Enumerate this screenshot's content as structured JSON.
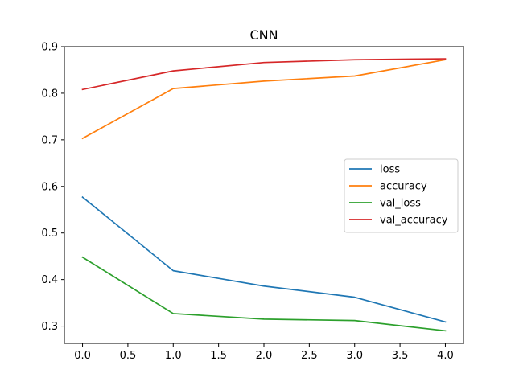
{
  "chart_data": {
    "type": "line",
    "title": "CNN",
    "xlabel": "",
    "ylabel": "",
    "x": [
      0,
      1,
      2,
      3,
      4
    ],
    "xlim": [
      -0.2,
      4.2
    ],
    "ylim": [
      0.263,
      0.9
    ],
    "xticks": [
      0,
      0.5,
      1,
      1.5,
      2,
      2.5,
      3,
      3.5,
      4
    ],
    "xtick_labels": [
      "0.0",
      "0.5",
      "1.0",
      "1.5",
      "2.0",
      "2.5",
      "3.0",
      "3.5",
      "4.0"
    ],
    "yticks": [
      0.3,
      0.4,
      0.5,
      0.6,
      0.7,
      0.8,
      0.9
    ],
    "ytick_labels": [
      "0.3",
      "0.4",
      "0.5",
      "0.6",
      "0.7",
      "0.8",
      "0.9"
    ],
    "grid": false,
    "legend_position": "center-right",
    "series": [
      {
        "name": "loss",
        "color": "#1f77b4",
        "values": [
          0.577,
          0.419,
          0.386,
          0.362,
          0.309
        ]
      },
      {
        "name": "accuracy",
        "color": "#ff7f0e",
        "values": [
          0.703,
          0.81,
          0.826,
          0.837,
          0.872
        ]
      },
      {
        "name": "val_loss",
        "color": "#2ca02c",
        "values": [
          0.448,
          0.327,
          0.315,
          0.312,
          0.29
        ]
      },
      {
        "name": "val_accuracy",
        "color": "#d62728",
        "values": [
          0.808,
          0.848,
          0.866,
          0.872,
          0.874
        ]
      }
    ]
  }
}
